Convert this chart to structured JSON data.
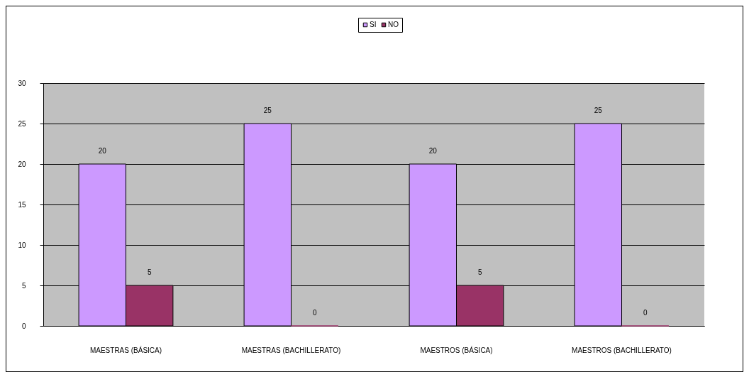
{
  "chart_data": {
    "type": "bar",
    "categories": [
      "MAESTRAS (BÁSICA)",
      "MAESTRAS (BACHILLERATO)",
      "MAESTROS (BÁSICA)",
      "MAESTROS (BACHILLERATO)"
    ],
    "series": [
      {
        "name": "SI",
        "color": "#cc99ff",
        "values": [
          20,
          25,
          20,
          25
        ]
      },
      {
        "name": "NO",
        "color": "#993366",
        "values": [
          5,
          0,
          5,
          0
        ]
      }
    ],
    "ylim": [
      0,
      30
    ],
    "yticks": [
      0,
      5,
      10,
      15,
      20,
      25,
      30
    ],
    "grid": "y",
    "legend": "top",
    "data_labels": true
  }
}
